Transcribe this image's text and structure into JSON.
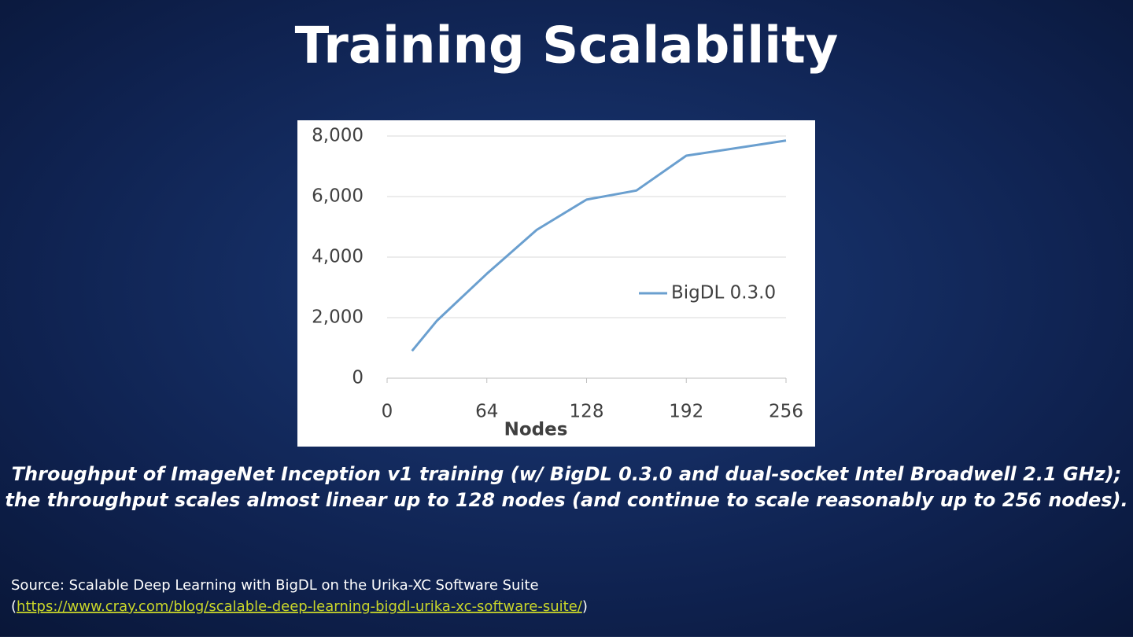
{
  "slide": {
    "title": "Training Scalability",
    "caption": [
      "Throughput of ImageNet Inception v1 training (w/ BigDL 0.3.0 and dual-socket Intel Broadwell 2.1 GHz);",
      "the throughput scales almost linear up to 128 nodes (and continue to scale reasonably up to 256 nodes)."
    ],
    "source": "Source: Scalable Deep Learning with BigDL on the Urika-XC Software Suite",
    "source_link": {
      "open": "(",
      "url": "https://www.cray.com/blog/scalable-deep-learning-bigdl-urika-xc-software-suite/",
      "close": ")"
    }
  },
  "chart_data": {
    "type": "line",
    "x_label": "Nodes",
    "x": [
      16,
      32,
      64,
      96,
      128,
      160,
      192,
      256
    ],
    "series": [
      {
        "name": "BigDL 0.3.0",
        "color": "#6a9fcf",
        "values": [
          900,
          1900,
          3450,
          4900,
          5900,
          6200,
          7350,
          7850
        ]
      }
    ],
    "xlim": [
      0,
      256
    ],
    "xticks": [
      0,
      64,
      128,
      192,
      256
    ],
    "ylim": [
      0,
      8000
    ],
    "yticks": [
      0,
      {
        "value": 2000,
        "label": "2,000"
      },
      {
        "value": 4000,
        "label": "4,000"
      },
      {
        "value": 6000,
        "label": "6,000"
      },
      {
        "value": 8000,
        "label": "8,000"
      }
    ],
    "grid": true,
    "legend": "right"
  }
}
